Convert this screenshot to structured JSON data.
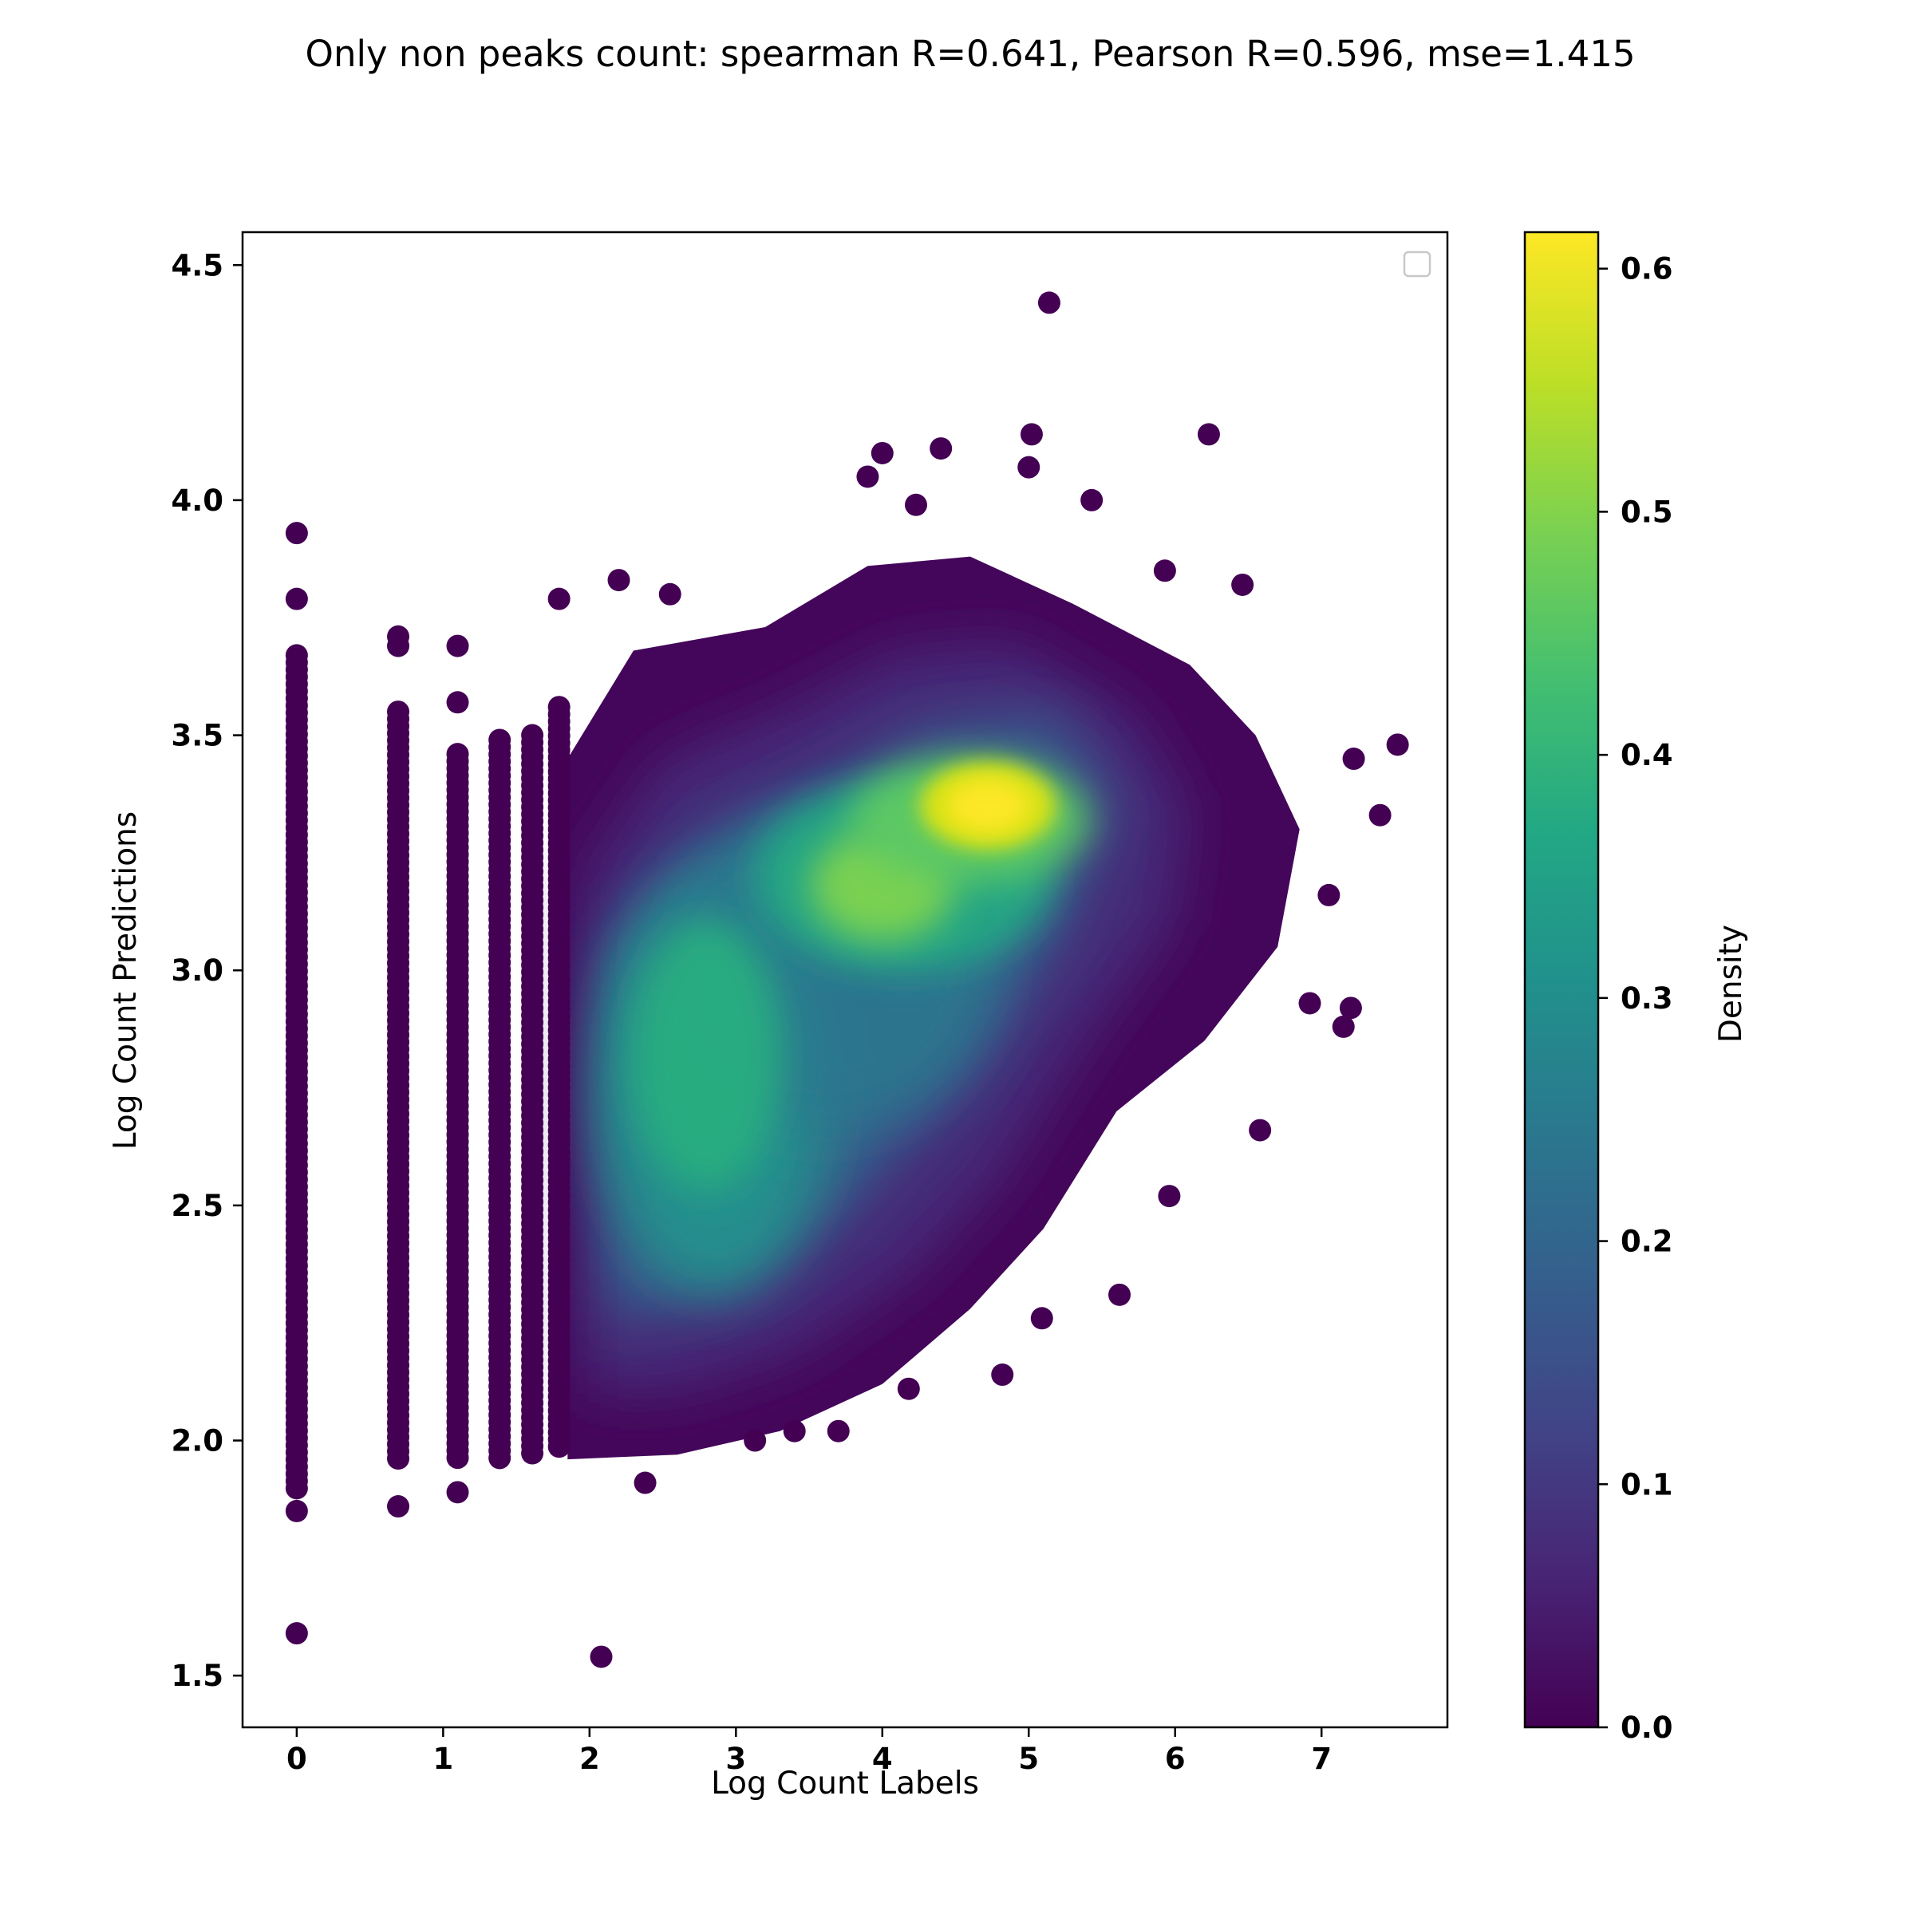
{
  "chart_data": {
    "type": "scatter",
    "title": "Only non peaks count: spearman R=0.641, Pearson R=0.596, mse=1.415",
    "xlabel": "Log Count Labels",
    "ylabel": "Log Count Predictions",
    "xlim": [
      -0.37,
      7.86
    ],
    "ylim": [
      1.39,
      4.57
    ],
    "xticks": [
      0,
      1,
      2,
      3,
      4,
      5,
      6,
      7
    ],
    "yticks": [
      1.5,
      2.0,
      2.5,
      3.0,
      3.5,
      4.0,
      4.5
    ],
    "xtick_labels": [
      "0",
      "1",
      "2",
      "3",
      "4",
      "5",
      "6",
      "7"
    ],
    "ytick_labels": [
      "1.5",
      "2.0",
      "2.5",
      "3.0",
      "3.5",
      "4.0",
      "4.5"
    ],
    "colorbar": {
      "label": "Density",
      "range": [
        0.0,
        0.615
      ],
      "ticks": [
        0.0,
        0.1,
        0.2,
        0.3,
        0.4,
        0.5,
        0.6
      ],
      "tick_labels": [
        "0.0",
        "0.1",
        "0.2",
        "0.3",
        "0.4",
        "0.5",
        "0.6"
      ],
      "colormap": "viridis"
    },
    "legend": "top-right, empty",
    "grid": false,
    "discrete_label_columns": [
      {
        "x": 0.0,
        "y_range": [
          1.89,
          3.67
        ]
      },
      {
        "x": 0.693,
        "y_range": [
          1.96,
          3.55
        ]
      },
      {
        "x": 1.099,
        "y_range": [
          1.95,
          3.46
        ]
      },
      {
        "x": 1.386,
        "y_range": [
          1.95,
          3.49
        ]
      },
      {
        "x": 1.609,
        "y_range": [
          1.97,
          3.5
        ]
      },
      {
        "x": 1.792,
        "y_range": [
          1.98,
          3.56
        ]
      }
    ],
    "density_peaks": [
      {
        "x": 4.72,
        "y": 3.35,
        "density": 0.61
      },
      {
        "x": 4.0,
        "y": 3.18,
        "density": 0.5
      },
      {
        "x": 2.85,
        "y": 2.8,
        "density": 0.4
      }
    ],
    "outliers": [
      {
        "x": 0.0,
        "y": 3.93
      },
      {
        "x": 0.0,
        "y": 3.79
      },
      {
        "x": 0.0,
        "y": 1.85
      },
      {
        "x": 0.0,
        "y": 1.59
      },
      {
        "x": 0.693,
        "y": 3.71
      },
      {
        "x": 0.693,
        "y": 3.69
      },
      {
        "x": 0.693,
        "y": 1.86
      },
      {
        "x": 1.099,
        "y": 3.69
      },
      {
        "x": 1.099,
        "y": 3.57
      },
      {
        "x": 1.099,
        "y": 1.89
      },
      {
        "x": 1.792,
        "y": 3.79
      },
      {
        "x": 2.08,
        "y": 1.54
      },
      {
        "x": 5.14,
        "y": 4.42
      },
      {
        "x": 5.02,
        "y": 4.14
      },
      {
        "x": 6.23,
        "y": 4.14
      },
      {
        "x": 4.4,
        "y": 4.11
      },
      {
        "x": 4.0,
        "y": 4.1
      },
      {
        "x": 5.0,
        "y": 4.07
      },
      {
        "x": 3.9,
        "y": 4.05
      },
      {
        "x": 5.43,
        "y": 4.0
      },
      {
        "x": 4.23,
        "y": 3.99
      },
      {
        "x": 6.46,
        "y": 3.82
      },
      {
        "x": 5.93,
        "y": 3.85
      },
      {
        "x": 7.52,
        "y": 3.48
      },
      {
        "x": 7.22,
        "y": 3.45
      },
      {
        "x": 7.4,
        "y": 3.33
      },
      {
        "x": 7.05,
        "y": 3.16
      },
      {
        "x": 7.2,
        "y": 2.92
      },
      {
        "x": 7.15,
        "y": 2.88
      },
      {
        "x": 6.92,
        "y": 2.93
      },
      {
        "x": 6.58,
        "y": 2.66
      },
      {
        "x": 5.96,
        "y": 2.52
      },
      {
        "x": 5.62,
        "y": 2.31
      },
      {
        "x": 5.09,
        "y": 2.26
      },
      {
        "x": 4.82,
        "y": 2.14
      },
      {
        "x": 4.18,
        "y": 2.11
      },
      {
        "x": 3.7,
        "y": 2.02
      },
      {
        "x": 3.4,
        "y": 2.02
      },
      {
        "x": 3.13,
        "y": 2.0
      },
      {
        "x": 2.38,
        "y": 1.91
      },
      {
        "x": 2.2,
        "y": 3.83
      },
      {
        "x": 2.55,
        "y": 3.8
      }
    ]
  }
}
